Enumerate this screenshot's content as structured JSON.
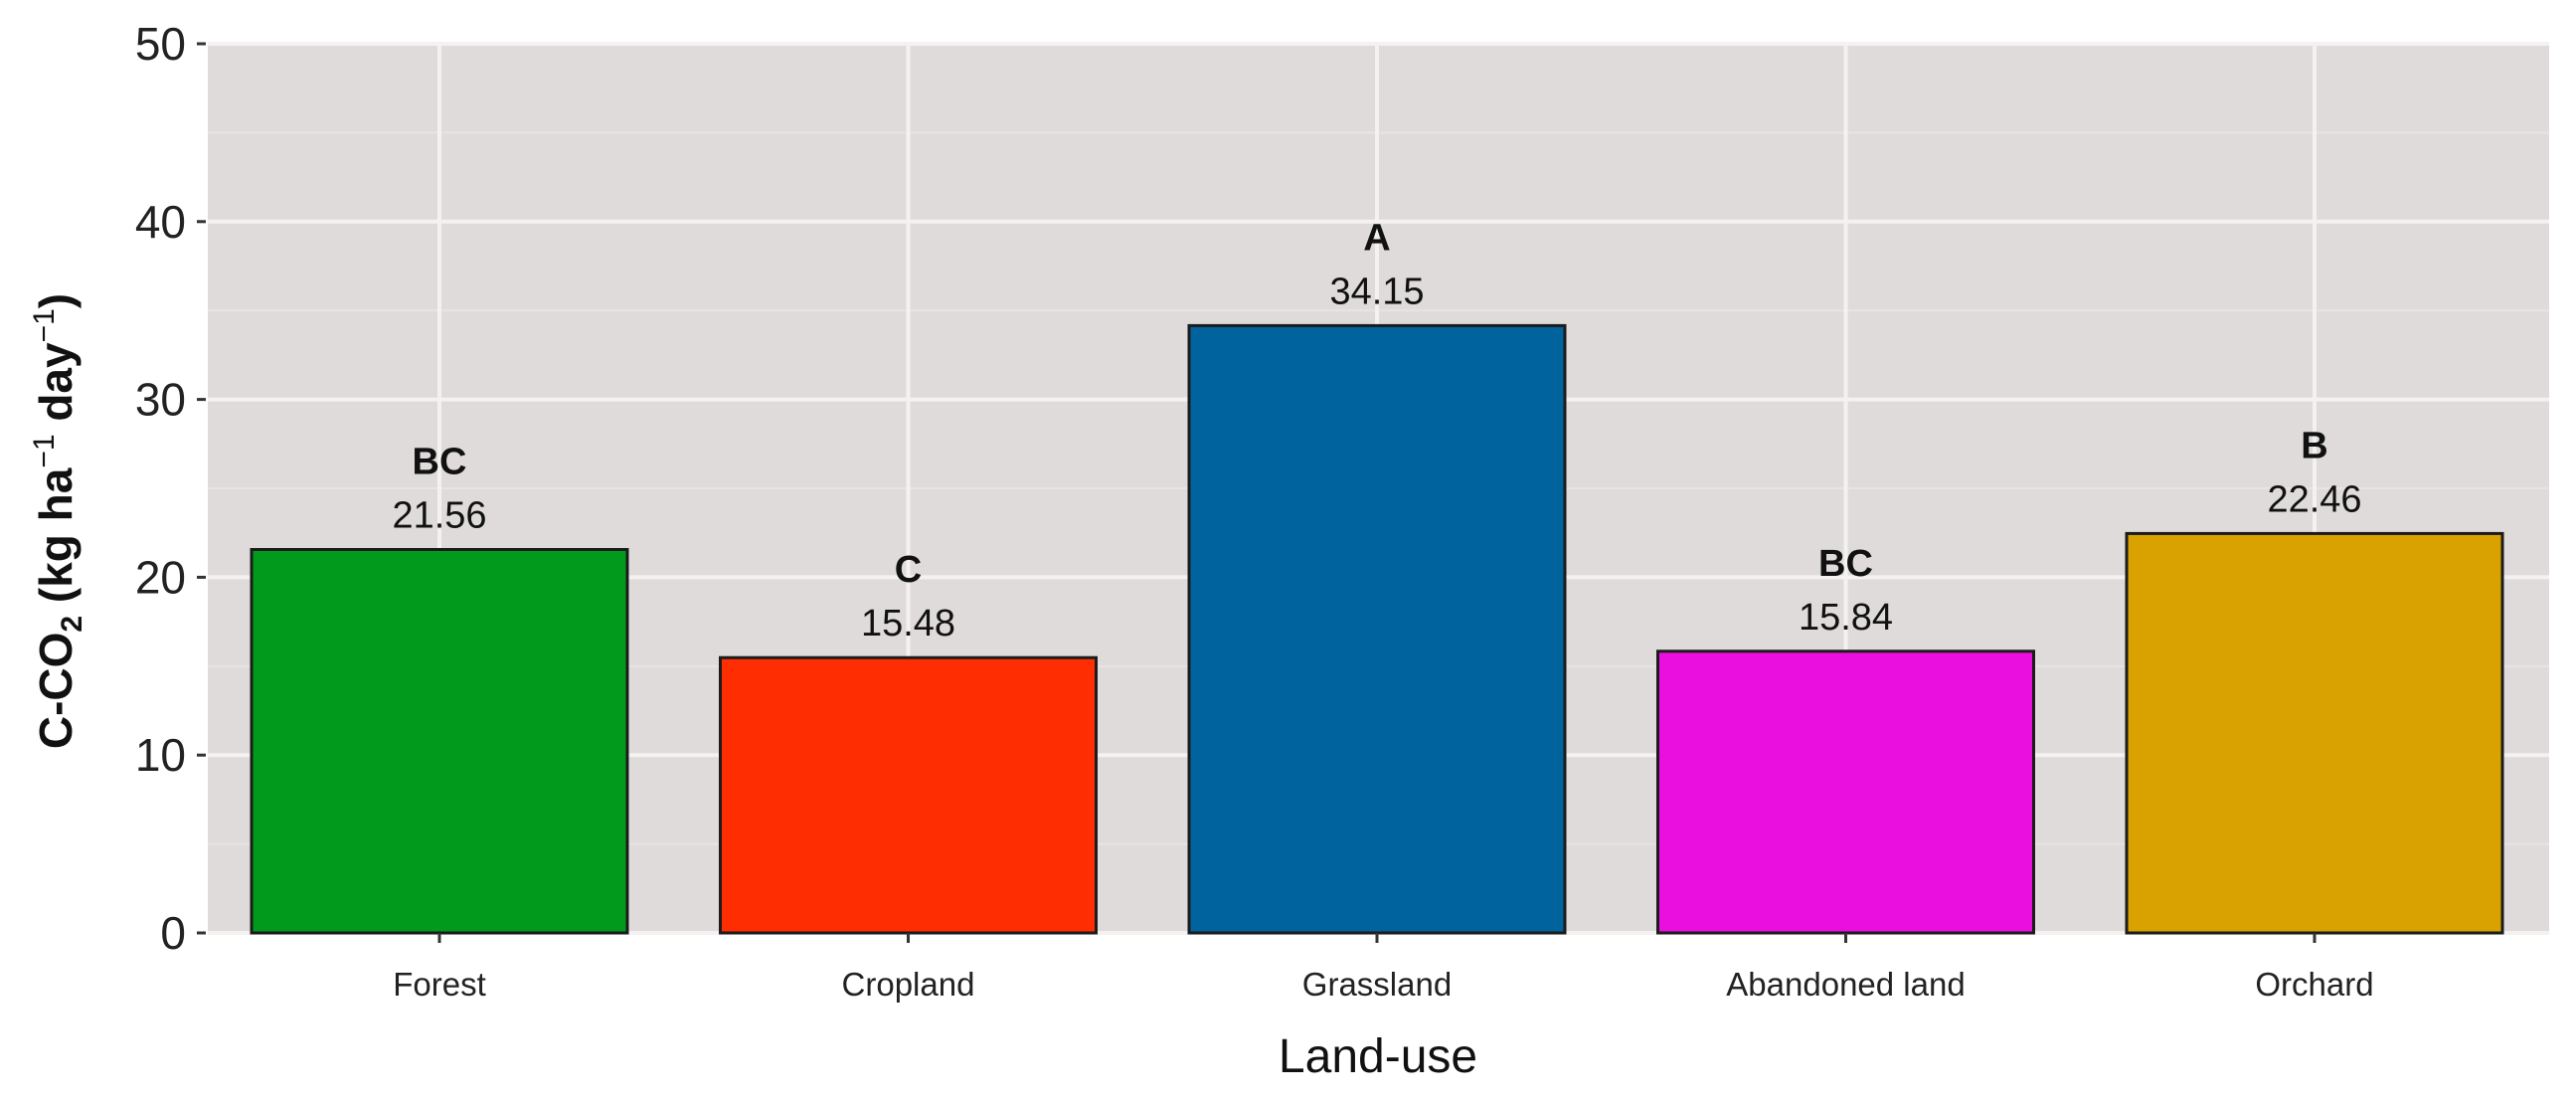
{
  "chart_data": {
    "type": "bar",
    "title": "",
    "xlabel": "Land-use",
    "ylabel": "C-CO2 (kg ha-1 day-1)",
    "ylabel_parts": {
      "main": "C-CO",
      "sub": "2",
      "mid1": " (kg ha",
      "sup1": "−1",
      "mid2": " day",
      "sup2": "−1",
      "end": ")"
    },
    "categories": [
      "Forest",
      "Cropland",
      "Grassland",
      "Abandoned land",
      "Orchard"
    ],
    "values": [
      21.56,
      15.48,
      34.15,
      15.84,
      22.46
    ],
    "value_labels": [
      "21.56",
      "15.48",
      "34.15",
      "15.84",
      "22.46"
    ],
    "significance_letters": [
      "BC",
      "C",
      "A",
      "BC",
      "B"
    ],
    "colors": [
      "#029a1d",
      "#fe2e02",
      "#00639e",
      "#ea0fde",
      "#d9a200"
    ],
    "ylim": [
      0,
      50
    ],
    "yticks": [
      0,
      10,
      20,
      30,
      40,
      50
    ],
    "ytick_labels": [
      "0",
      "10",
      "20",
      "30",
      "40",
      "50"
    ],
    "grid": true,
    "legend": "none"
  }
}
